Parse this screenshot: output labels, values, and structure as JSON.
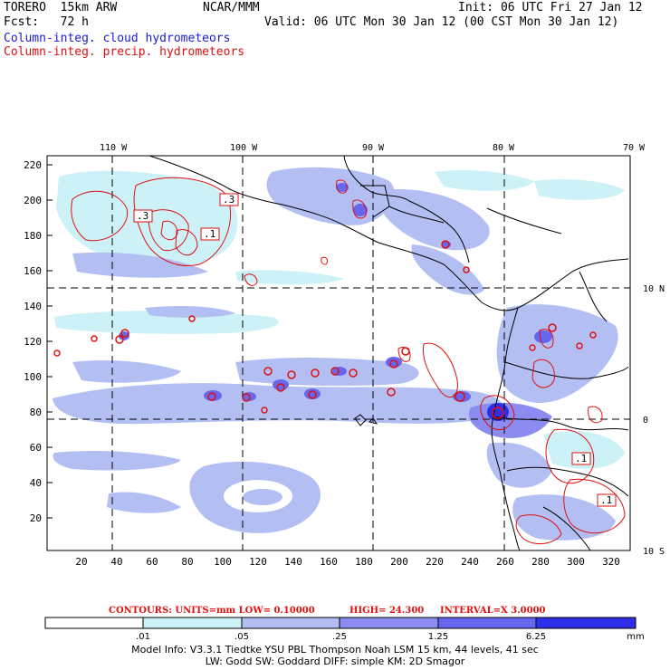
{
  "header": {
    "model": "TORERO  15km ARW",
    "org": "NCAR/MMM",
    "fcst": "Fcst:   72 h",
    "init": "Init: 06 UTC Fri 27 Jan 12",
    "valid": "Valid: 06 UTC Mon 30 Jan 12 (00 CST Mon 30 Jan 12)",
    "legend_cloud": "Column-integ. cloud hydrometeors",
    "legend_precip": "Column-integ. precip. hydrometeors"
  },
  "colors": {
    "cloud_fill_levels": [
      "#ccf2f8",
      "#b3bff2",
      "#8c8cf0",
      "#6666ee",
      "#2f2fea"
    ],
    "precip_contour": "#e01010",
    "coast": "#000000"
  },
  "map": {
    "top_lon_labels": [
      "110 W",
      "100 W",
      "90 W",
      "80 W",
      "70 W"
    ],
    "right_lat_labels": [
      "10 N",
      "0",
      "10 S"
    ],
    "y_ticks": [
      "220",
      "200",
      "180",
      "160",
      "140",
      "120",
      "100",
      "80",
      "60",
      "40",
      "20"
    ],
    "x_ticks": [
      "20",
      "40",
      "60",
      "80",
      "100",
      "120",
      "140",
      "160",
      "180",
      "200",
      "220",
      "240",
      "260",
      "280",
      "300",
      "320"
    ],
    "contour_labels": [
      ".3",
      ".3",
      ".1",
      ".1",
      ".1"
    ]
  },
  "contour_info": {
    "units": "CONTOURS:  UNITS=mm  LOW= 0.10000",
    "high": "HIGH=  24.300",
    "interval": "INTERVAL=X  3.0000"
  },
  "colorbar": {
    "labels": [
      ".01",
      ".05",
      ".25",
      "1.25",
      "6.25"
    ],
    "unit": "mm"
  },
  "footer": {
    "line1": "Model Info: V3.3.1   Tiedtke YSU PBL  Thompson    Noah LSM  15 km,   44 levels,   41 sec",
    "line2": "LW: Godd SW: Goddard DIFF: simple KM: 2D Smagor"
  }
}
